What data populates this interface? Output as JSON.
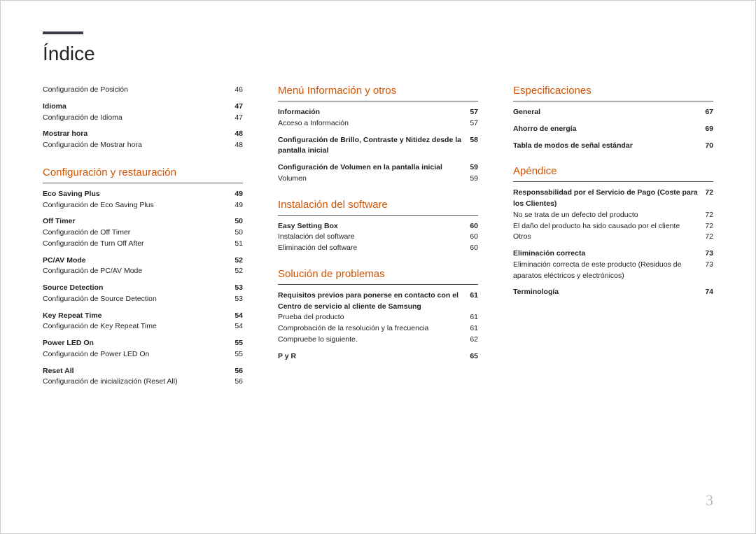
{
  "title": "Índice",
  "pageNumber": "3",
  "col1": {
    "top_entries": [
      {
        "label": "Configuración de Posición",
        "page": "46",
        "bold": false
      },
      {
        "label": "Idioma",
        "page": "47",
        "bold": true
      },
      {
        "label": "Configuración de Idioma",
        "page": "47",
        "bold": false
      },
      {
        "label": "Mostrar hora",
        "page": "48",
        "bold": true
      },
      {
        "label": "Configuración de Mostrar hora",
        "page": "48",
        "bold": false
      }
    ],
    "sections": [
      {
        "heading": "Configuración y restauración",
        "entries": [
          {
            "label": "Eco Saving Plus",
            "page": "49",
            "bold": true
          },
          {
            "label": "Configuración de Eco Saving Plus",
            "page": "49",
            "bold": false
          },
          {
            "label": "Off Timer",
            "page": "50",
            "bold": true
          },
          {
            "label": "Configuración de Off Timer",
            "page": "50",
            "bold": false
          },
          {
            "label": "Configuración de Turn Off After",
            "page": "51",
            "bold": false
          },
          {
            "label": "PC/AV Mode",
            "page": "52",
            "bold": true
          },
          {
            "label": "Configuración de PC/AV Mode",
            "page": "52",
            "bold": false
          },
          {
            "label": "Source Detection",
            "page": "53",
            "bold": true
          },
          {
            "label": "Configuración de Source Detection",
            "page": "53",
            "bold": false
          },
          {
            "label": "Key Repeat Time",
            "page": "54",
            "bold": true
          },
          {
            "label": "Configuración de Key Repeat Time",
            "page": "54",
            "bold": false
          },
          {
            "label": "Power LED On",
            "page": "55",
            "bold": true
          },
          {
            "label": "Configuración de Power LED On",
            "page": "55",
            "bold": false
          },
          {
            "label": "Reset All",
            "page": "56",
            "bold": true
          },
          {
            "label": "Configuración de inicialización (Reset All)",
            "page": "56",
            "bold": false
          }
        ]
      }
    ]
  },
  "col2": {
    "sections": [
      {
        "heading": "Menú Información y otros",
        "entries": [
          {
            "label": "Información",
            "page": "57",
            "bold": true
          },
          {
            "label": "Acceso a Información",
            "page": "57",
            "bold": false
          },
          {
            "label": "Configuración de Brillo, Contraste y Nitidez desde la pantalla inicial",
            "page": "58",
            "bold": true
          },
          {
            "label": "Configuración de Volumen en la pantalla inicial",
            "page": "59",
            "bold": true
          },
          {
            "label": "Volumen",
            "page": "59",
            "bold": false
          }
        ]
      },
      {
        "heading": "Instalación del software",
        "entries": [
          {
            "label": "Easy Setting Box",
            "page": "60",
            "bold": true
          },
          {
            "label": "Instalación del software",
            "page": "60",
            "bold": false
          },
          {
            "label": "Eliminación del software",
            "page": "60",
            "bold": false
          }
        ]
      },
      {
        "heading": "Solución de problemas",
        "entries": [
          {
            "label": "Requisitos previos para ponerse en contacto con el Centro de servicio al cliente de Samsung",
            "page": "61",
            "bold": true
          },
          {
            "label": "Prueba del producto",
            "page": "61",
            "bold": false
          },
          {
            "label": "Comprobación de la resolución y la frecuencia",
            "page": "61",
            "bold": false
          },
          {
            "label": "Compruebe lo siguiente.",
            "page": "62",
            "bold": false
          },
          {
            "label": "P y R",
            "page": "65",
            "bold": true
          }
        ]
      }
    ]
  },
  "col3": {
    "sections": [
      {
        "heading": "Especificaciones",
        "entries": [
          {
            "label": "General",
            "page": "67",
            "bold": true
          },
          {
            "label": "Ahorro de energía",
            "page": "69",
            "bold": true
          },
          {
            "label": "Tabla de modos de señal estándar",
            "page": "70",
            "bold": true
          }
        ]
      },
      {
        "heading": "Apéndice",
        "entries": [
          {
            "label": "Responsabilidad por el Servicio de Pago (Coste para los Clientes)",
            "page": "72",
            "bold": true
          },
          {
            "label": "No se trata de un defecto del producto",
            "page": "72",
            "bold": false
          },
          {
            "label": "El daño del producto ha sido causado por el cliente",
            "page": "72",
            "bold": false
          },
          {
            "label": "Otros",
            "page": "72",
            "bold": false
          },
          {
            "label": "Eliminación correcta",
            "page": "73",
            "bold": true
          },
          {
            "label": "Eliminación correcta de este producto (Residuos de aparatos eléctricos y electrónicos)",
            "page": "73",
            "bold": false
          },
          {
            "label": "Terminología",
            "page": "74",
            "bold": true
          }
        ]
      }
    ]
  }
}
